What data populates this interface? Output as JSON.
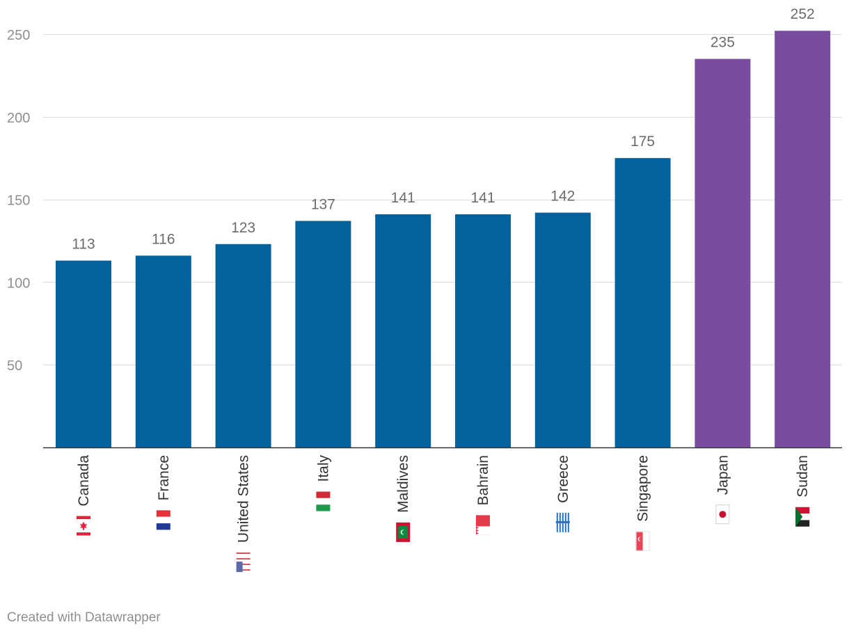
{
  "chart_data": {
    "type": "bar",
    "categories": [
      "Canada",
      "France",
      "United States",
      "Italy",
      "Maldives",
      "Bahrain",
      "Greece",
      "Singapore",
      "Japan",
      "Sudan"
    ],
    "values": [
      113,
      116,
      123,
      137,
      141,
      141,
      142,
      175,
      235,
      252
    ],
    "highlighted": [
      false,
      false,
      false,
      false,
      false,
      false,
      false,
      false,
      true,
      true
    ],
    "colors": {
      "default": "#03629e",
      "highlight": "#7a4ca0"
    },
    "flags": [
      "flag-canada-icon",
      "flag-france-icon",
      "flag-united-states-icon",
      "flag-italy-icon",
      "flag-maldives-icon",
      "flag-bahrain-icon",
      "flag-greece-icon",
      "flag-singapore-icon",
      "flag-japan-icon",
      "flag-sudan-icon"
    ],
    "yticks": [
      50,
      100,
      150,
      200,
      250
    ],
    "ylim": [
      0,
      250
    ],
    "grid": true,
    "title": "",
    "xlabel": "",
    "ylabel": ""
  },
  "footer": {
    "credit": "Created with Datawrapper"
  }
}
